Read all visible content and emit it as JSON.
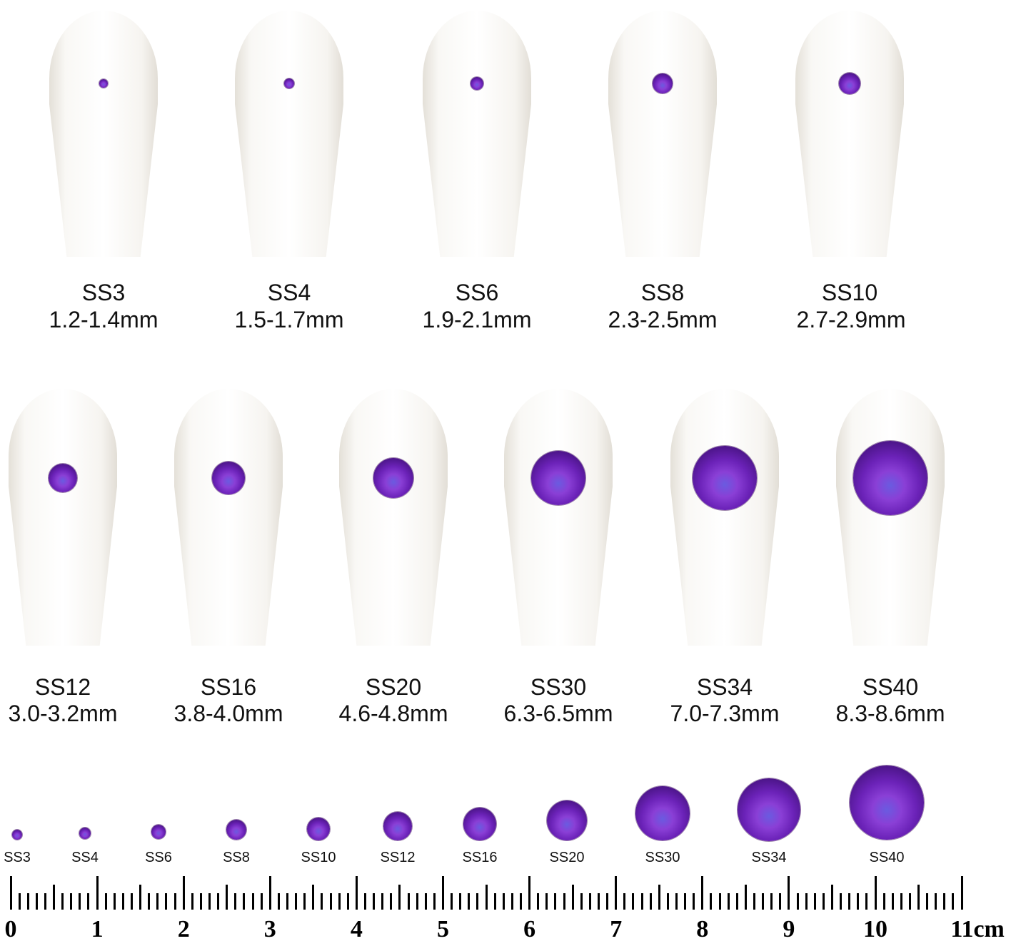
{
  "row1": [
    {
      "size": "SS3",
      "range": "1.2-1.4mm"
    },
    {
      "size": "SS4",
      "range": "1.5-1.7mm"
    },
    {
      "size": "SS6",
      "range": "1.9-2.1mm"
    },
    {
      "size": "SS8",
      "range": "2.3-2.5mm"
    },
    {
      "size": "SS10",
      "range": "2.7-2.9mm"
    }
  ],
  "row2": [
    {
      "size": "SS12",
      "range": "3.0-3.2mm"
    },
    {
      "size": "SS16",
      "range": "3.8-4.0mm"
    },
    {
      "size": "SS20",
      "range": "4.6-4.8mm"
    },
    {
      "size": "SS30",
      "range": "6.3-6.5mm"
    },
    {
      "size": "SS34",
      "range": "7.0-7.3mm"
    },
    {
      "size": "SS40",
      "range": "8.3-8.6mm"
    }
  ],
  "strip": [
    "SS3",
    "SS4",
    "SS6",
    "SS8",
    "SS10",
    "SS12",
    "SS16",
    "SS20",
    "SS30",
    "SS34",
    "SS40"
  ],
  "ruler": {
    "labels": [
      "0",
      "1",
      "2",
      "3",
      "4",
      "5",
      "6",
      "7",
      "8",
      "9",
      "10",
      "11cm"
    ]
  },
  "colors": {
    "stone": "#6b22b8",
    "nail": "#ffffff"
  }
}
